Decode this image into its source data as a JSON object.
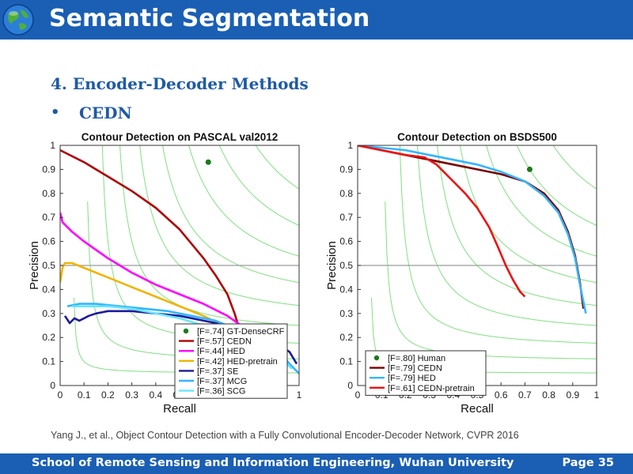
{
  "header": {
    "title": "Semantic Segmentation"
  },
  "section": {
    "heading": "4. Encoder-Decoder Methods",
    "bullet_marker": "•",
    "bullet": "CEDN"
  },
  "citation": "Yang J., et al.,  Object Contour Detection with a Fully Convolutional Encoder-Decoder Network, CVPR 2016",
  "footer": {
    "school": "School of Remote Sensing and Information Engineering, Wuhan University",
    "page": "Page 35"
  },
  "chart_data": [
    {
      "type": "line",
      "title": "Contour Detection on PASCAL val2012",
      "xlabel": "Recall",
      "ylabel": "Precision",
      "xlim": [
        0,
        1
      ],
      "ylim": [
        0,
        1
      ],
      "ticks": [
        "0",
        "0.1",
        "0.2",
        "0.3",
        "0.4",
        "0.5",
        "0.6",
        "0.7",
        "0.8",
        "0.9",
        "1"
      ],
      "grid": false,
      "iso_f_contours": true,
      "legend_position": "bottom-right",
      "series": [
        {
          "name": "[F=.74] GT-DenseCRF",
          "color": "#1a7a1a",
          "marker": "dot",
          "points": [
            [
              0.62,
              0.93
            ]
          ]
        },
        {
          "name": "[F=.57] CEDN",
          "color": "#b00000",
          "points": [
            [
              0.0,
              0.98
            ],
            [
              0.1,
              0.93
            ],
            [
              0.2,
              0.87
            ],
            [
              0.3,
              0.81
            ],
            [
              0.4,
              0.74
            ],
            [
              0.5,
              0.65
            ],
            [
              0.6,
              0.53
            ],
            [
              0.65,
              0.46
            ],
            [
              0.7,
              0.38
            ],
            [
              0.73,
              0.3
            ],
            [
              0.76,
              0.2
            ],
            [
              0.78,
              0.14
            ]
          ]
        },
        {
          "name": "[F=.44] HED",
          "color": "#ff00ff",
          "points": [
            [
              0.0,
              0.72
            ],
            [
              0.01,
              0.68
            ],
            [
              0.05,
              0.64
            ],
            [
              0.1,
              0.6
            ],
            [
              0.2,
              0.53
            ],
            [
              0.3,
              0.47
            ],
            [
              0.4,
              0.42
            ],
            [
              0.5,
              0.38
            ],
            [
              0.6,
              0.34
            ],
            [
              0.7,
              0.29
            ],
            [
              0.8,
              0.22
            ],
            [
              0.85,
              0.17
            ],
            [
              0.88,
              0.13
            ],
            [
              0.89,
              0.1
            ]
          ]
        },
        {
          "name": "[F=.42] HED-pretrain",
          "color": "#f0b400",
          "points": [
            [
              0.0,
              0.43
            ],
            [
              0.01,
              0.49
            ],
            [
              0.02,
              0.51
            ],
            [
              0.05,
              0.51
            ],
            [
              0.1,
              0.49
            ],
            [
              0.2,
              0.45
            ],
            [
              0.3,
              0.41
            ],
            [
              0.4,
              0.37
            ],
            [
              0.5,
              0.33
            ],
            [
              0.6,
              0.29
            ],
            [
              0.7,
              0.24
            ],
            [
              0.78,
              0.19
            ]
          ]
        },
        {
          "name": "[F=.37] SE",
          "color": "#1c1c9a",
          "points": [
            [
              0.02,
              0.29
            ],
            [
              0.04,
              0.26
            ],
            [
              0.06,
              0.28
            ],
            [
              0.08,
              0.27
            ],
            [
              0.1,
              0.28
            ],
            [
              0.12,
              0.29
            ],
            [
              0.15,
              0.3
            ],
            [
              0.2,
              0.31
            ],
            [
              0.25,
              0.31
            ],
            [
              0.3,
              0.31
            ],
            [
              0.4,
              0.3
            ],
            [
              0.5,
              0.29
            ],
            [
              0.6,
              0.27
            ],
            [
              0.7,
              0.25
            ],
            [
              0.8,
              0.22
            ],
            [
              0.9,
              0.18
            ],
            [
              0.96,
              0.14
            ],
            [
              0.99,
              0.09
            ]
          ]
        },
        {
          "name": "[F=.37] MCG",
          "color": "#33b5ff",
          "points": [
            [
              0.03,
              0.33
            ],
            [
              0.08,
              0.34
            ],
            [
              0.15,
              0.34
            ],
            [
              0.25,
              0.33
            ],
            [
              0.35,
              0.32
            ],
            [
              0.45,
              0.31
            ],
            [
              0.55,
              0.29
            ],
            [
              0.65,
              0.27
            ],
            [
              0.75,
              0.23
            ],
            [
              0.85,
              0.19
            ],
            [
              0.92,
              0.14
            ],
            [
              0.96,
              0.09
            ],
            [
              1.0,
              0.05
            ]
          ]
        },
        {
          "name": "[F=.36] SCG",
          "color": "#66e6ff",
          "points": [
            [
              0.05,
              0.33
            ],
            [
              0.12,
              0.33
            ],
            [
              0.2,
              0.33
            ],
            [
              0.3,
              0.32
            ],
            [
              0.4,
              0.3
            ],
            [
              0.5,
              0.28
            ],
            [
              0.6,
              0.25
            ],
            [
              0.7,
              0.22
            ],
            [
              0.8,
              0.18
            ],
            [
              0.88,
              0.14
            ],
            [
              0.94,
              0.1
            ],
            [
              0.97,
              0.07
            ]
          ]
        }
      ]
    },
    {
      "type": "line",
      "title": "Contour Detection on BSDS500",
      "xlabel": "Recall",
      "ylabel": "Precision",
      "xlim": [
        0,
        1
      ],
      "ylim": [
        0,
        1
      ],
      "ticks": [
        "0",
        "0.1",
        "0.2",
        "0.3",
        "0.4",
        "0.5",
        "0.6",
        "0.7",
        "0.8",
        "0.9",
        "1"
      ],
      "grid": false,
      "iso_f_contours": true,
      "legend_position": "bottom-left",
      "series": [
        {
          "name": "[F=.80] Human",
          "color": "#1a7a1a",
          "marker": "dot",
          "points": [
            [
              0.72,
              0.9
            ]
          ]
        },
        {
          "name": "[F=.79] CEDN",
          "color": "#7a0000",
          "points": [
            [
              0.0,
              1.0
            ],
            [
              0.1,
              0.98
            ],
            [
              0.2,
              0.96
            ],
            [
              0.3,
              0.94
            ],
            [
              0.4,
              0.92
            ],
            [
              0.5,
              0.9
            ],
            [
              0.6,
              0.88
            ],
            [
              0.7,
              0.85
            ],
            [
              0.78,
              0.8
            ],
            [
              0.84,
              0.73
            ],
            [
              0.88,
              0.64
            ],
            [
              0.91,
              0.54
            ],
            [
              0.93,
              0.43
            ],
            [
              0.945,
              0.32
            ]
          ]
        },
        {
          "name": "[F=.79] HED",
          "color": "#33b5ff",
          "points": [
            [
              0.0,
              1.0
            ],
            [
              0.1,
              0.99
            ],
            [
              0.2,
              0.98
            ],
            [
              0.3,
              0.96
            ],
            [
              0.4,
              0.94
            ],
            [
              0.5,
              0.92
            ],
            [
              0.6,
              0.89
            ],
            [
              0.7,
              0.85
            ],
            [
              0.78,
              0.79
            ],
            [
              0.84,
              0.72
            ],
            [
              0.88,
              0.63
            ],
            [
              0.91,
              0.53
            ],
            [
              0.93,
              0.42
            ],
            [
              0.955,
              0.3
            ]
          ]
        },
        {
          "name": "[F=.61] CEDN-pretrain",
          "color": "#ee1111",
          "points": [
            [
              0.0,
              1.0
            ],
            [
              0.1,
              0.98
            ],
            [
              0.2,
              0.96
            ],
            [
              0.28,
              0.95
            ],
            [
              0.33,
              0.92
            ],
            [
              0.38,
              0.87
            ],
            [
              0.45,
              0.8
            ],
            [
              0.5,
              0.74
            ],
            [
              0.55,
              0.66
            ],
            [
              0.59,
              0.57
            ],
            [
              0.62,
              0.5
            ],
            [
              0.65,
              0.44
            ],
            [
              0.68,
              0.39
            ],
            [
              0.7,
              0.37
            ]
          ]
        }
      ]
    }
  ]
}
